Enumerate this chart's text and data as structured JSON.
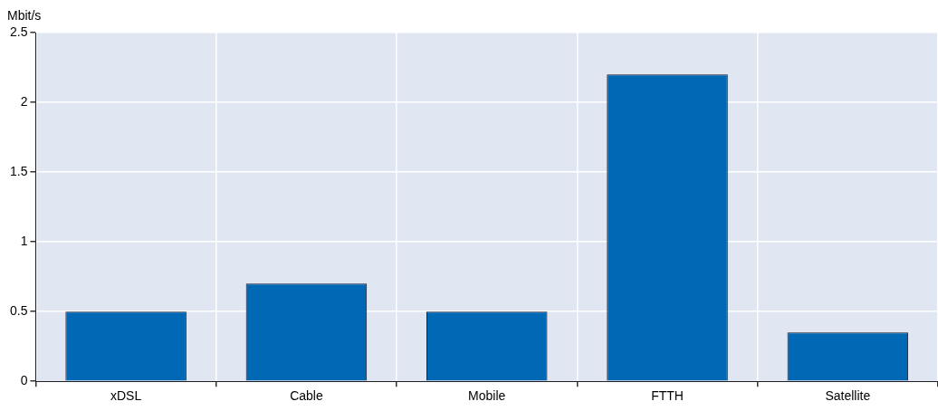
{
  "chart_data": {
    "type": "bar",
    "ylabel": "Mbit/s",
    "categories": [
      "xDSL",
      "Cable",
      "Mobile",
      "FTTH",
      "Satellite"
    ],
    "values": [
      0.5,
      0.7,
      0.5,
      2.2,
      0.35
    ],
    "color": "#0068b4",
    "ylim": [
      0,
      2.5
    ],
    "yticks": [
      0,
      0.5,
      1,
      1.5,
      2,
      2.5
    ],
    "grid": true
  }
}
